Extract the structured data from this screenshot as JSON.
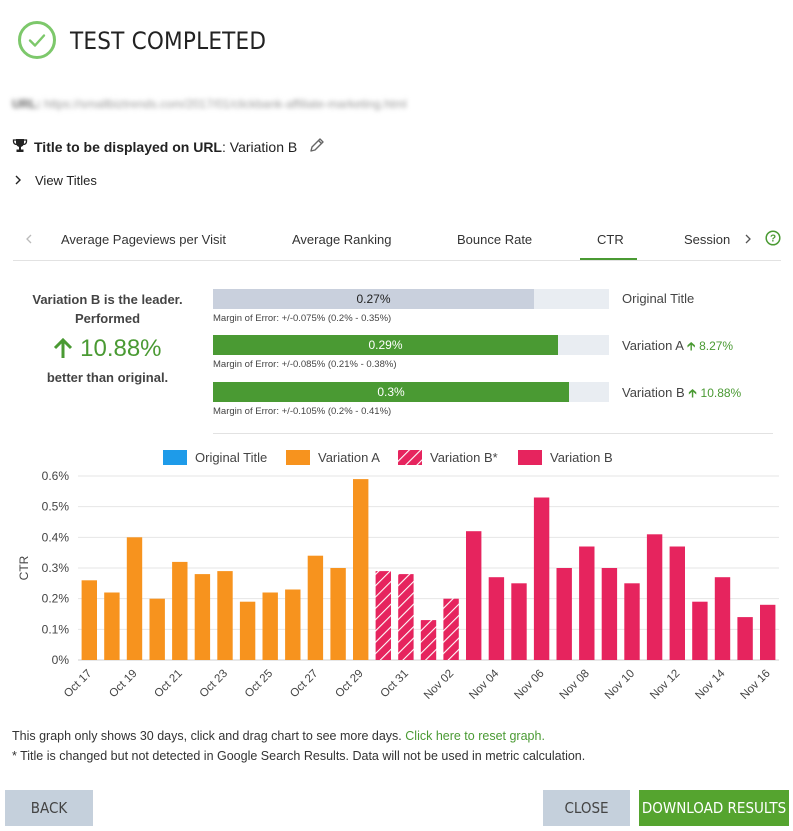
{
  "header": {
    "title": "TEST COMPLETED"
  },
  "url_row": {
    "label": "URL:",
    "value": "https://smallbiztrends.com/2017/01/clickbank-affiliate-marketing.html"
  },
  "title_row": {
    "label": "Title to be displayed on URL",
    "value": "Variation B"
  },
  "view_titles": {
    "label": "View Titles"
  },
  "tabs": [
    {
      "label": "Average Pageviews per Visit"
    },
    {
      "label": "Average Ranking"
    },
    {
      "label": "Bounce Rate"
    },
    {
      "label": "CTR"
    },
    {
      "label": "Session"
    }
  ],
  "active_tab": "CTR",
  "leader": {
    "line1": "Variation B is the leader.",
    "line2": "Performed",
    "percent": "10.88%",
    "line3": "better than original."
  },
  "results": [
    {
      "name": "Original Title",
      "value_label": "0.27%",
      "fill": 0.81,
      "color": "#c9d0dd",
      "moe": "Margin of Error: +/-0.075% (0.2% - 0.35%)",
      "delta": ""
    },
    {
      "name": "Variation A",
      "value_label": "0.29%",
      "fill": 0.87,
      "color": "#4a9a33",
      "moe": "Margin of Error: +/-0.085% (0.21% - 0.38%)",
      "delta": "8.27%"
    },
    {
      "name": "Variation B",
      "value_label": "0.3%",
      "fill": 0.9,
      "color": "#4a9a33",
      "moe": "Margin of Error: +/-0.105% (0.2% - 0.41%)",
      "delta": "10.88%"
    }
  ],
  "chart_data": {
    "type": "bar",
    "title": "",
    "xlabel": "",
    "ylabel": "CTR",
    "ylim": [
      0,
      0.6
    ],
    "yticks": [
      "0%",
      "0.1%",
      "0.2%",
      "0.3%",
      "0.4%",
      "0.5%",
      "0.6%"
    ],
    "legend": [
      {
        "name": "Original Title",
        "color": "#1e9be9",
        "hatched": false
      },
      {
        "name": "Variation A",
        "color": "#f7931e",
        "hatched": false
      },
      {
        "name": "Variation B*",
        "color": "#e6245e",
        "hatched": true
      },
      {
        "name": "Variation B",
        "color": "#e6245e",
        "hatched": false
      }
    ],
    "categories": [
      "Oct 17",
      "Oct 18",
      "Oct 19",
      "Oct 20",
      "Oct 21",
      "Oct 22",
      "Oct 23",
      "Oct 24",
      "Oct 25",
      "Oct 26",
      "Oct 27",
      "Oct 28",
      "Oct 29",
      "Oct 30",
      "Oct 31",
      "Nov 01",
      "Nov 02",
      "Nov 03",
      "Nov 04",
      "Nov 05",
      "Nov 06",
      "Nov 07",
      "Nov 08",
      "Nov 09",
      "Nov 10",
      "Nov 11",
      "Nov 12",
      "Nov 13",
      "Nov 14",
      "Nov 15",
      "Nov 16"
    ],
    "tick_labels": [
      "Oct 17",
      "",
      "Oct 19",
      "",
      "Oct 21",
      "",
      "Oct 23",
      "",
      "Oct 25",
      "",
      "Oct 27",
      "",
      "Oct 29",
      "",
      "Oct 31",
      "",
      "Nov 02",
      "",
      "Nov 04",
      "",
      "Nov 06",
      "",
      "Nov 08",
      "",
      "Nov 10",
      "",
      "Nov 12",
      "",
      "Nov 14",
      "",
      "Nov 16"
    ],
    "values": [
      0.26,
      0.22,
      0.4,
      0.2,
      0.32,
      0.28,
      0.29,
      0.19,
      0.22,
      0.23,
      0.34,
      0.3,
      0.59,
      0.29,
      0.28,
      0.13,
      0.2,
      0.42,
      0.27,
      0.25,
      0.53,
      0.3,
      0.37,
      0.3,
      0.25,
      0.41,
      0.37,
      0.19,
      0.27,
      0.14,
      0.18
    ],
    "series_by_bar": [
      "Variation A",
      "Variation A",
      "Variation A",
      "Variation A",
      "Variation A",
      "Variation A",
      "Variation A",
      "Variation A",
      "Variation A",
      "Variation A",
      "Variation A",
      "Variation A",
      "Variation A",
      "Variation B*",
      "Variation B*",
      "Variation B*",
      "Variation B*",
      "Variation B",
      "Variation B",
      "Variation B",
      "Variation B",
      "Variation B",
      "Variation B",
      "Variation B",
      "Variation B",
      "Variation B",
      "Variation B",
      "Variation B",
      "Variation B",
      "Variation B",
      "Variation B"
    ]
  },
  "footnotes": {
    "line1": "This graph only shows 30 days, click and drag chart to see more days.",
    "reset_link": "Click here to reset graph.",
    "line2": "* Title is changed but not detected in Google Search Results. Data will not be used in metric calculation."
  },
  "buttons": {
    "back": "BACK",
    "close": "CLOSE",
    "download": "DOWNLOAD RESULTS"
  },
  "colors": {
    "accent": "#4a9a33",
    "button_gray": "#c5d0dc",
    "download_green": "#55a42f"
  }
}
